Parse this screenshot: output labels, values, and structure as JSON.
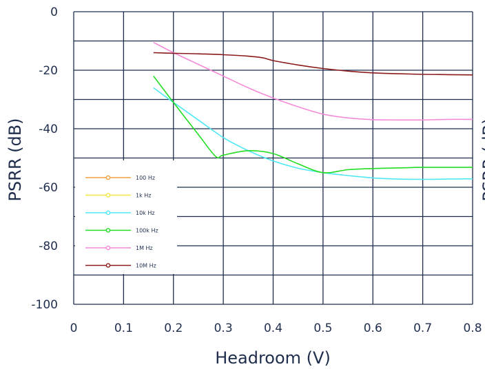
{
  "chart_data": {
    "type": "line",
    "xlabel": "Headroom (V)",
    "ylabel": "PSRR (dB)",
    "ylabel_right": "PSRR (dB)",
    "xlim": [
      0,
      0.8
    ],
    "ylim": [
      -100,
      0
    ],
    "x_ticks": [
      "0",
      "0.1",
      "0.2",
      "0.3",
      "0.4",
      "0.5",
      "0.6",
      "0.7",
      "0.8"
    ],
    "y_ticks": [
      "0",
      "-20",
      "-40",
      "-60",
      "-80",
      "-100"
    ],
    "grid": true,
    "legend_position": "bottom-left",
    "series": [
      {
        "name": "100 Hz",
        "color": "#f0a040",
        "x": [],
        "y": []
      },
      {
        "name": "1k Hz",
        "color": "#f5e642",
        "x": [],
        "y": []
      },
      {
        "name": "10k Hz",
        "color": "#4ee8f5",
        "x": [
          0.16,
          0.2,
          0.25,
          0.3,
          0.35,
          0.4,
          0.45,
          0.5,
          0.55,
          0.6,
          0.65,
          0.7,
          0.75,
          0.8
        ],
        "y": [
          -26,
          -31,
          -37,
          -43,
          -47.5,
          -51,
          -53.5,
          -55,
          -56,
          -56.8,
          -57.2,
          -57.3,
          -57.2,
          -57.1
        ]
      },
      {
        "name": "100k Hz",
        "color": "#22dd22",
        "x": [
          0.16,
          0.2,
          0.25,
          0.285,
          0.3,
          0.35,
          0.4,
          0.45,
          0.5,
          0.55,
          0.6,
          0.65,
          0.7,
          0.75,
          0.8
        ],
        "y": [
          -22,
          -31,
          -42,
          -49.5,
          -49,
          -47.5,
          -48.5,
          -52,
          -55,
          -54,
          -53.6,
          -53.4,
          -53.2,
          -53.2,
          -53.2
        ]
      },
      {
        "name": "1M Hz",
        "color": "#f58ad8",
        "x": [
          0.16,
          0.2,
          0.25,
          0.3,
          0.35,
          0.4,
          0.45,
          0.5,
          0.55,
          0.6,
          0.65,
          0.7,
          0.75,
          0.8
        ],
        "y": [
          -10.5,
          -14,
          -18,
          -22,
          -26,
          -29.5,
          -32.5,
          -35,
          -36.3,
          -36.9,
          -37,
          -37,
          -36.8,
          -36.8
        ]
      },
      {
        "name": "10M Hz",
        "color": "#8b1a1a",
        "x": [
          0.16,
          0.2,
          0.25,
          0.3,
          0.35,
          0.38,
          0.4,
          0.45,
          0.5,
          0.55,
          0.6,
          0.65,
          0.7,
          0.75,
          0.8
        ],
        "y": [
          -14,
          -14.2,
          -14.4,
          -14.7,
          -15.2,
          -15.8,
          -16.7,
          -18.2,
          -19.4,
          -20.3,
          -20.9,
          -21.2,
          -21.4,
          -21.5,
          -21.6
        ]
      }
    ]
  }
}
